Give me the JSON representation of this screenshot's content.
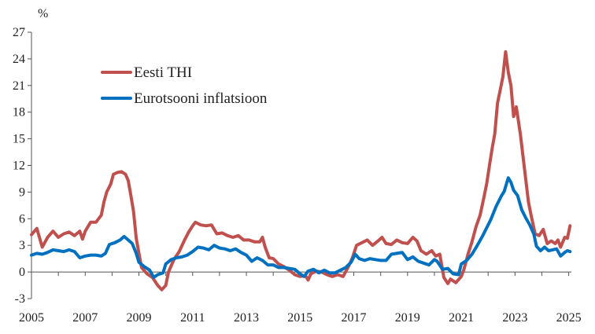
{
  "chart_data": {
    "type": "line",
    "title": "",
    "xlabel": "",
    "ylabel": "%",
    "ylim": [
      -3,
      27
    ],
    "yticks": [
      -3,
      0,
      3,
      6,
      9,
      12,
      15,
      18,
      21,
      24,
      27
    ],
    "xlim": [
      2005,
      2025.1
    ],
    "xticks": [
      2005,
      2007,
      2009,
      2011,
      2013,
      2015,
      2017,
      2019,
      2021,
      2023,
      2025
    ],
    "grid": false,
    "legend_position": "top-left",
    "series": [
      {
        "name": "Eesti THI",
        "color": "#c0504d",
        "points": [
          [
            2005.0,
            4.2
          ],
          [
            2005.2,
            4.9
          ],
          [
            2005.4,
            2.8
          ],
          [
            2005.6,
            3.9
          ],
          [
            2005.8,
            4.6
          ],
          [
            2006.0,
            3.9
          ],
          [
            2006.2,
            4.3
          ],
          [
            2006.4,
            4.5
          ],
          [
            2006.6,
            4.1
          ],
          [
            2006.8,
            4.6
          ],
          [
            2006.9,
            3.7
          ],
          [
            2007.0,
            4.6
          ],
          [
            2007.2,
            5.6
          ],
          [
            2007.4,
            5.6
          ],
          [
            2007.6,
            6.4
          ],
          [
            2007.7,
            7.9
          ],
          [
            2007.8,
            9.0
          ],
          [
            2007.95,
            9.9
          ],
          [
            2008.05,
            11.0
          ],
          [
            2008.2,
            11.2
          ],
          [
            2008.35,
            11.3
          ],
          [
            2008.5,
            11.0
          ],
          [
            2008.6,
            10.3
          ],
          [
            2008.7,
            8.6
          ],
          [
            2008.8,
            6.8
          ],
          [
            2008.9,
            3.8
          ],
          [
            2009.0,
            2.1
          ],
          [
            2009.1,
            0.5
          ],
          [
            2009.3,
            -0.2
          ],
          [
            2009.5,
            -0.6
          ],
          [
            2009.7,
            -1.5
          ],
          [
            2009.85,
            -2.0
          ],
          [
            2010.0,
            -1.5
          ],
          [
            2010.1,
            0.0
          ],
          [
            2010.3,
            1.4
          ],
          [
            2010.5,
            2.3
          ],
          [
            2010.7,
            3.6
          ],
          [
            2010.85,
            4.5
          ],
          [
            2011.0,
            5.2
          ],
          [
            2011.1,
            5.6
          ],
          [
            2011.3,
            5.3
          ],
          [
            2011.5,
            5.2
          ],
          [
            2011.7,
            5.3
          ],
          [
            2011.9,
            4.3
          ],
          [
            2012.1,
            4.4
          ],
          [
            2012.3,
            4.1
          ],
          [
            2012.5,
            3.9
          ],
          [
            2012.7,
            4.1
          ],
          [
            2012.9,
            3.6
          ],
          [
            2013.1,
            3.6
          ],
          [
            2013.3,
            3.4
          ],
          [
            2013.5,
            3.4
          ],
          [
            2013.6,
            3.9
          ],
          [
            2013.7,
            2.8
          ],
          [
            2013.85,
            1.6
          ],
          [
            2014.0,
            1.5
          ],
          [
            2014.2,
            0.9
          ],
          [
            2014.4,
            0.6
          ],
          [
            2014.6,
            0.2
          ],
          [
            2014.8,
            -0.3
          ],
          [
            2015.0,
            -0.5
          ],
          [
            2015.2,
            -0.4
          ],
          [
            2015.3,
            -0.9
          ],
          [
            2015.4,
            -0.2
          ],
          [
            2015.6,
            0.1
          ],
          [
            2015.8,
            0.0
          ],
          [
            2016.0,
            -0.3
          ],
          [
            2016.2,
            -0.5
          ],
          [
            2016.4,
            -0.3
          ],
          [
            2016.6,
            -0.5
          ],
          [
            2016.8,
            0.6
          ],
          [
            2016.95,
            1.6
          ],
          [
            2017.1,
            3.0
          ],
          [
            2017.3,
            3.3
          ],
          [
            2017.5,
            3.6
          ],
          [
            2017.7,
            3.0
          ],
          [
            2017.9,
            3.5
          ],
          [
            2018.05,
            3.9
          ],
          [
            2018.2,
            3.2
          ],
          [
            2018.4,
            3.1
          ],
          [
            2018.6,
            3.6
          ],
          [
            2018.8,
            3.3
          ],
          [
            2019.0,
            3.2
          ],
          [
            2019.2,
            3.9
          ],
          [
            2019.35,
            3.5
          ],
          [
            2019.5,
            2.4
          ],
          [
            2019.7,
            2.0
          ],
          [
            2019.9,
            2.4
          ],
          [
            2020.05,
            1.8
          ],
          [
            2020.2,
            2.0
          ],
          [
            2020.35,
            -0.6
          ],
          [
            2020.5,
            -1.3
          ],
          [
            2020.6,
            -0.8
          ],
          [
            2020.8,
            -1.2
          ],
          [
            2021.0,
            -0.5
          ],
          [
            2021.1,
            0.3
          ],
          [
            2021.25,
            2.0
          ],
          [
            2021.4,
            3.4
          ],
          [
            2021.55,
            5.1
          ],
          [
            2021.7,
            6.4
          ],
          [
            2021.85,
            8.5
          ],
          [
            2021.95,
            10.0
          ],
          [
            2022.05,
            12.0
          ],
          [
            2022.15,
            13.9
          ],
          [
            2022.25,
            15.6
          ],
          [
            2022.35,
            19.0
          ],
          [
            2022.45,
            20.5
          ],
          [
            2022.55,
            22.0
          ],
          [
            2022.65,
            24.8
          ],
          [
            2022.75,
            22.5
          ],
          [
            2022.85,
            21.0
          ],
          [
            2022.95,
            17.5
          ],
          [
            2023.05,
            18.6
          ],
          [
            2023.2,
            15.5
          ],
          [
            2023.35,
            11.7
          ],
          [
            2023.5,
            7.9
          ],
          [
            2023.6,
            6.4
          ],
          [
            2023.75,
            4.3
          ],
          [
            2023.9,
            4.1
          ],
          [
            2024.05,
            4.8
          ],
          [
            2024.2,
            3.2
          ],
          [
            2024.35,
            3.5
          ],
          [
            2024.5,
            3.2
          ],
          [
            2024.6,
            3.6
          ],
          [
            2024.7,
            2.8
          ],
          [
            2024.85,
            3.9
          ],
          [
            2024.95,
            3.8
          ],
          [
            2025.05,
            5.2
          ]
        ]
      },
      {
        "name": "Eurotsooni inflatsioon",
        "color": "#0070c0",
        "points": [
          [
            2005.0,
            1.9
          ],
          [
            2005.2,
            2.1
          ],
          [
            2005.4,
            2.0
          ],
          [
            2005.6,
            2.2
          ],
          [
            2005.8,
            2.5
          ],
          [
            2006.0,
            2.4
          ],
          [
            2006.2,
            2.3
          ],
          [
            2006.4,
            2.5
          ],
          [
            2006.6,
            2.3
          ],
          [
            2006.8,
            1.6
          ],
          [
            2007.0,
            1.8
          ],
          [
            2007.2,
            1.9
          ],
          [
            2007.4,
            1.9
          ],
          [
            2007.6,
            1.8
          ],
          [
            2007.75,
            2.1
          ],
          [
            2007.9,
            3.1
          ],
          [
            2008.1,
            3.3
          ],
          [
            2008.3,
            3.6
          ],
          [
            2008.45,
            4.0
          ],
          [
            2008.6,
            3.6
          ],
          [
            2008.75,
            3.2
          ],
          [
            2008.9,
            2.1
          ],
          [
            2009.0,
            1.1
          ],
          [
            2009.2,
            0.6
          ],
          [
            2009.4,
            0.2
          ],
          [
            2009.55,
            -0.6
          ],
          [
            2009.7,
            -0.3
          ],
          [
            2009.9,
            -0.1
          ],
          [
            2010.0,
            0.9
          ],
          [
            2010.2,
            1.4
          ],
          [
            2010.4,
            1.6
          ],
          [
            2010.6,
            1.7
          ],
          [
            2010.8,
            1.9
          ],
          [
            2011.0,
            2.3
          ],
          [
            2011.2,
            2.8
          ],
          [
            2011.4,
            2.7
          ],
          [
            2011.6,
            2.5
          ],
          [
            2011.8,
            3.0
          ],
          [
            2012.0,
            2.7
          ],
          [
            2012.2,
            2.6
          ],
          [
            2012.4,
            2.4
          ],
          [
            2012.6,
            2.6
          ],
          [
            2012.8,
            2.2
          ],
          [
            2013.0,
            1.9
          ],
          [
            2013.2,
            1.2
          ],
          [
            2013.4,
            1.6
          ],
          [
            2013.6,
            1.3
          ],
          [
            2013.8,
            0.8
          ],
          [
            2014.0,
            0.8
          ],
          [
            2014.2,
            0.5
          ],
          [
            2014.4,
            0.5
          ],
          [
            2014.6,
            0.4
          ],
          [
            2014.8,
            0.3
          ],
          [
            2015.0,
            -0.2
          ],
          [
            2015.15,
            -0.5
          ],
          [
            2015.3,
            0.1
          ],
          [
            2015.5,
            0.3
          ],
          [
            2015.7,
            -0.1
          ],
          [
            2015.9,
            0.2
          ],
          [
            2016.1,
            -0.1
          ],
          [
            2016.3,
            -0.1
          ],
          [
            2016.5,
            0.2
          ],
          [
            2016.7,
            0.5
          ],
          [
            2016.9,
            1.1
          ],
          [
            2017.05,
            2.0
          ],
          [
            2017.2,
            1.5
          ],
          [
            2017.4,
            1.3
          ],
          [
            2017.6,
            1.5
          ],
          [
            2017.8,
            1.4
          ],
          [
            2018.0,
            1.3
          ],
          [
            2018.2,
            1.3
          ],
          [
            2018.4,
            2.0
          ],
          [
            2018.6,
            2.1
          ],
          [
            2018.8,
            2.2
          ],
          [
            2019.0,
            1.4
          ],
          [
            2019.2,
            1.7
          ],
          [
            2019.4,
            1.2
          ],
          [
            2019.6,
            1.0
          ],
          [
            2019.8,
            0.8
          ],
          [
            2020.0,
            1.4
          ],
          [
            2020.1,
            1.2
          ],
          [
            2020.3,
            0.3
          ],
          [
            2020.5,
            0.4
          ],
          [
            2020.7,
            -0.2
          ],
          [
            2020.9,
            -0.3
          ],
          [
            2021.0,
            0.9
          ],
          [
            2021.2,
            1.3
          ],
          [
            2021.4,
            2.0
          ],
          [
            2021.6,
            3.0
          ],
          [
            2021.8,
            4.1
          ],
          [
            2021.95,
            5.0
          ],
          [
            2022.1,
            5.9
          ],
          [
            2022.3,
            7.4
          ],
          [
            2022.5,
            8.6
          ],
          [
            2022.6,
            9.1
          ],
          [
            2022.75,
            10.6
          ],
          [
            2022.85,
            10.1
          ],
          [
            2022.95,
            9.2
          ],
          [
            2023.1,
            8.6
          ],
          [
            2023.25,
            7.0
          ],
          [
            2023.4,
            6.1
          ],
          [
            2023.55,
            5.3
          ],
          [
            2023.7,
            4.3
          ],
          [
            2023.8,
            2.9
          ],
          [
            2023.95,
            2.4
          ],
          [
            2024.1,
            2.8
          ],
          [
            2024.25,
            2.4
          ],
          [
            2024.4,
            2.5
          ],
          [
            2024.55,
            2.6
          ],
          [
            2024.7,
            1.8
          ],
          [
            2024.85,
            2.2
          ],
          [
            2024.95,
            2.4
          ],
          [
            2025.05,
            2.3
          ]
        ]
      }
    ]
  }
}
